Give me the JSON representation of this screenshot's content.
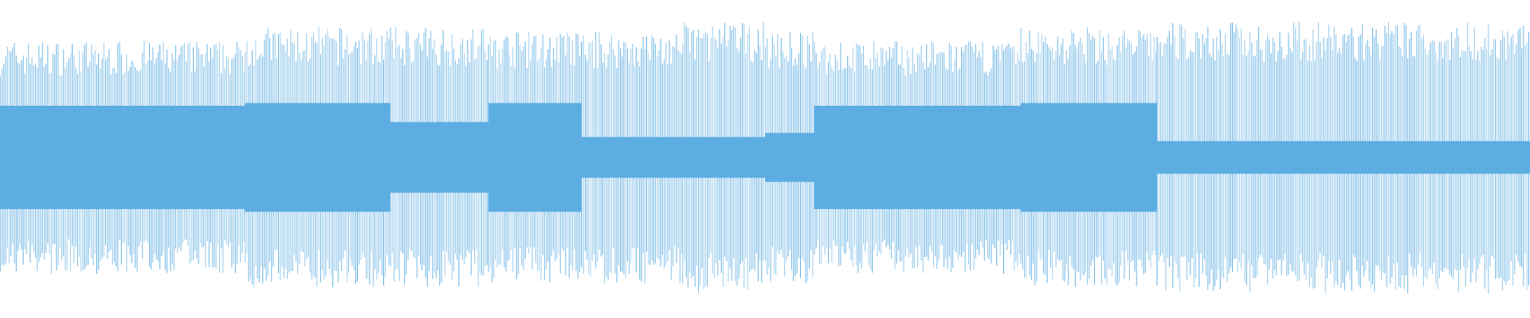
{
  "waveform": {
    "color": "#5dade2",
    "segments": [
      {
        "start": 0,
        "end": 0.16,
        "peak": 0.86,
        "core": 0.38
      },
      {
        "start": 0.16,
        "end": 0.255,
        "peak": 0.96,
        "core": 0.4
      },
      {
        "start": 0.255,
        "end": 0.319,
        "peak": 0.96,
        "core": 0.26
      },
      {
        "start": 0.319,
        "end": 0.38,
        "peak": 0.93,
        "core": 0.4
      },
      {
        "start": 0.38,
        "end": 0.446,
        "peak": 0.93,
        "core": 0.15
      },
      {
        "start": 0.446,
        "end": 0.5,
        "peak": 1,
        "core": 0.15
      },
      {
        "start": 0.5,
        "end": 0.532,
        "peak": 0.93,
        "core": 0.18
      },
      {
        "start": 0.532,
        "end": 0.667,
        "peak": 0.86,
        "core": 0.38
      },
      {
        "start": 0.667,
        "end": 0.756,
        "peak": 0.96,
        "core": 0.4
      },
      {
        "start": 0.756,
        "end": 1,
        "peak": 1,
        "core": 0.12
      }
    ]
  }
}
